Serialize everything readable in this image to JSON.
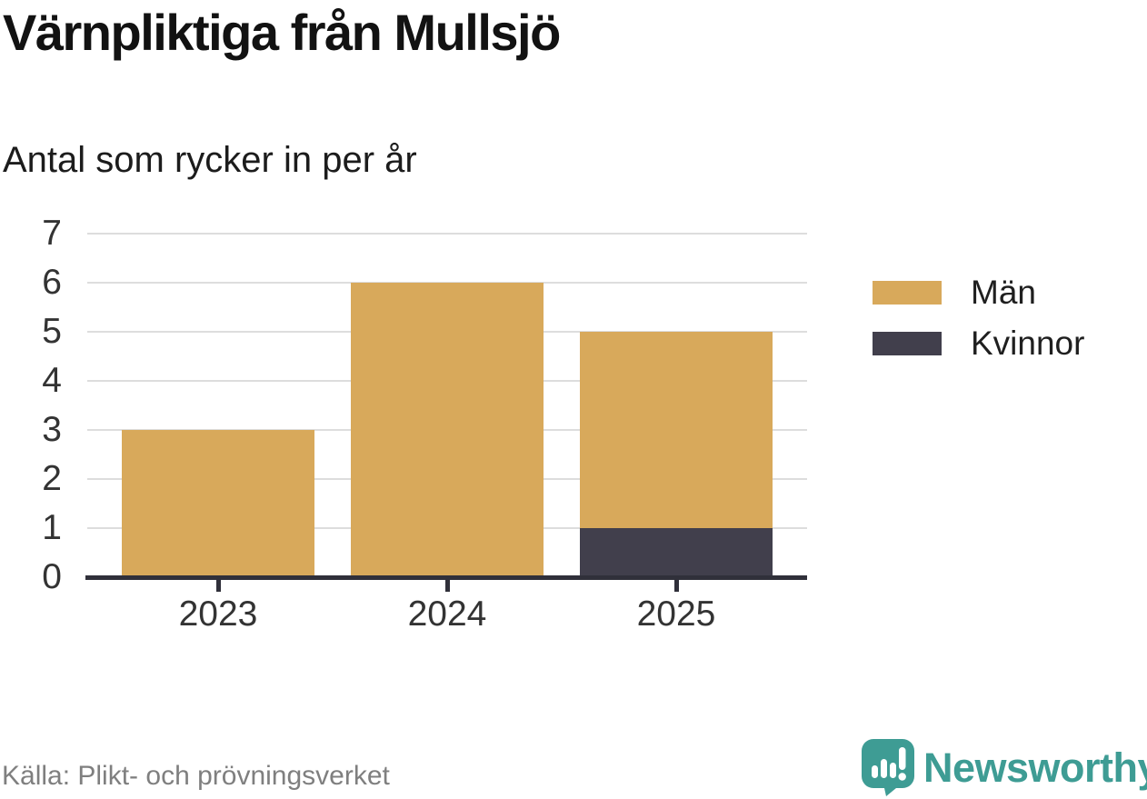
{
  "header": {
    "title": "Värnpliktiga från Mullsjö",
    "subtitle": "Antal som rycker in per år"
  },
  "footer": {
    "source": "Källa: Plikt- och prövningsverket",
    "brand": "Newsworthy"
  },
  "icons": {
    "brand_logo": "newsworthy-speech-bubble-bar-chart-icon"
  },
  "colors": {
    "bar_man": "#d8a95b",
    "bar_kvinnor": "#413f4c",
    "axis": "#30303a",
    "grid": "#dddddd",
    "tick_text": "#333333",
    "subtle_text": "#7f7f7f",
    "brand_teal": "#3e9c94"
  },
  "chart_data": {
    "type": "bar",
    "stacked": true,
    "title": "Värnpliktiga från Mullsjö",
    "subtitle": "Antal som rycker in per år",
    "categories": [
      "2023",
      "2024",
      "2025"
    ],
    "series": [
      {
        "name": "Män",
        "values": [
          3,
          6,
          4
        ],
        "color": "#d8a95b"
      },
      {
        "name": "Kvinnor",
        "values": [
          0,
          0,
          1
        ],
        "color": "#413f4c"
      }
    ],
    "stack_order_bottom_to_top": [
      "Kvinnor",
      "Män"
    ],
    "totals": [
      3,
      6,
      5
    ],
    "xlabel": "",
    "ylabel": "",
    "ylim": [
      0,
      7
    ],
    "yticks": [
      0,
      1,
      2,
      3,
      4,
      5,
      6,
      7
    ],
    "grid": "horizontal",
    "legend_position": "right",
    "source": "Källa: Plikt- och prövningsverket"
  }
}
